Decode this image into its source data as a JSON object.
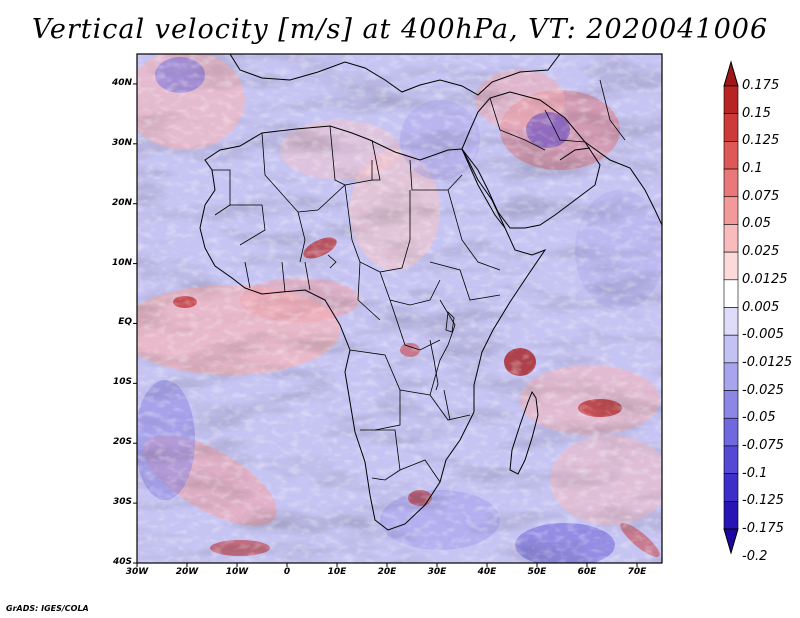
{
  "title": "Vertical velocity [m/s] at 400hPa, VT: 2020041006",
  "credit": "GrADS: IGES/COLA",
  "lat_labels": [
    "40N",
    "30N",
    "20N",
    "10N",
    "EQ",
    "10S",
    "20S",
    "30S",
    "40S"
  ],
  "lat_values": [
    40,
    30,
    20,
    10,
    0,
    -10,
    -20,
    -30,
    -40
  ],
  "lon_labels": [
    "30W",
    "20W",
    "10W",
    "0",
    "10E",
    "20E",
    "30E",
    "40E",
    "50E",
    "60E",
    "70E"
  ],
  "lon_values": [
    -30,
    -20,
    -10,
    0,
    10,
    20,
    30,
    40,
    50,
    60,
    70
  ],
  "extent": {
    "lon_min": -30,
    "lon_max": 75,
    "lat_min": -40,
    "lat_max": 45
  },
  "colorbar": {
    "labels": [
      "0.175",
      "0.15",
      "0.125",
      "0.1",
      "0.075",
      "0.05",
      "0.025",
      "0.0125",
      "0.005",
      "-0.005",
      "-0.0125",
      "-0.025",
      "-0.05",
      "-0.075",
      "-0.1",
      "-0.125",
      "-0.175",
      "-0.2"
    ],
    "colors": [
      "#a11616",
      "#b82424",
      "#cc3a3a",
      "#de5858",
      "#ea7878",
      "#f29a9a",
      "#f8bcbc",
      "#fcdada",
      "#ffffff",
      "#dedcf8",
      "#c4c2f4",
      "#a8a4ee",
      "#8c86e6",
      "#7068de",
      "#5448d4",
      "#3c2ec8",
      "#2814b4",
      "#1c08a0"
    ]
  }
}
